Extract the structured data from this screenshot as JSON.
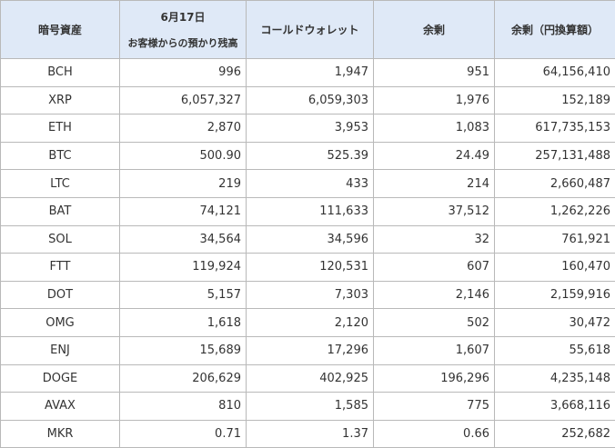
{
  "headers": {
    "asset": "暗号資産",
    "customer_date": "6月17日",
    "customer_sub": "お客様からの預かり残高",
    "cold_wallet": "コールドウォレット",
    "surplus": "余剰",
    "surplus_jpy": "余剰（円換算額）"
  },
  "rows": [
    {
      "asset": "BCH",
      "customer": "996",
      "cold": "1,947",
      "surplus": "951",
      "jpy": "64,156,410"
    },
    {
      "asset": "XRP",
      "customer": "6,057,327",
      "cold": "6,059,303",
      "surplus": "1,976",
      "jpy": "152,189"
    },
    {
      "asset": "ETH",
      "customer": "2,870",
      "cold": "3,953",
      "surplus": "1,083",
      "jpy": "617,735,153"
    },
    {
      "asset": "BTC",
      "customer": "500.90",
      "cold": "525.39",
      "surplus": "24.49",
      "jpy": "257,131,488"
    },
    {
      "asset": "LTC",
      "customer": "219",
      "cold": "433",
      "surplus": "214",
      "jpy": "2,660,487"
    },
    {
      "asset": "BAT",
      "customer": "74,121",
      "cold": "111,633",
      "surplus": "37,512",
      "jpy": "1,262,226"
    },
    {
      "asset": "SOL",
      "customer": "34,564",
      "cold": "34,596",
      "surplus": "32",
      "jpy": "761,921"
    },
    {
      "asset": "FTT",
      "customer": "119,924",
      "cold": "120,531",
      "surplus": "607",
      "jpy": "160,470"
    },
    {
      "asset": "DOT",
      "customer": "5,157",
      "cold": "7,303",
      "surplus": "2,146",
      "jpy": "2,159,916"
    },
    {
      "asset": "OMG",
      "customer": "1,618",
      "cold": "2,120",
      "surplus": "502",
      "jpy": "30,472"
    },
    {
      "asset": "ENJ",
      "customer": "15,689",
      "cold": "17,296",
      "surplus": "1,607",
      "jpy": "55,618"
    },
    {
      "asset": "DOGE",
      "customer": "206,629",
      "cold": "402,925",
      "surplus": "196,296",
      "jpy": "4,235,148"
    },
    {
      "asset": "AVAX",
      "customer": "810",
      "cold": "1,585",
      "surplus": "775",
      "jpy": "3,668,116"
    },
    {
      "asset": "MKR",
      "customer": "0.71",
      "cold": "1.37",
      "surplus": "0.66",
      "jpy": "252,682"
    }
  ]
}
